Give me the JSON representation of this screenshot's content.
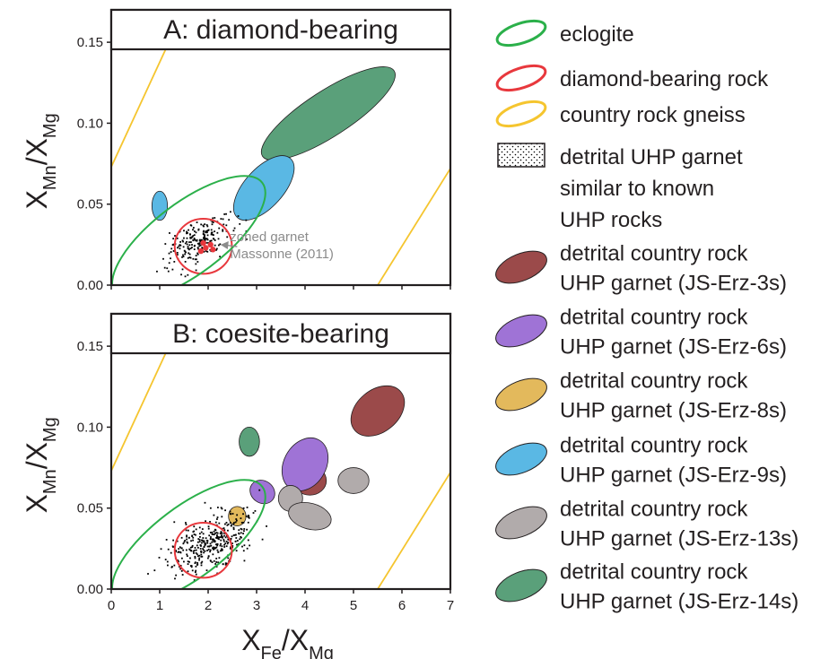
{
  "chart_data": [
    {
      "type": "scatter",
      "title": "A: diamond-bearing",
      "ylabel": {
        "main": "X",
        "sub1": "Mn",
        "mid": "/X",
        "sub2": "Mg"
      },
      "xlim": [
        0,
        7
      ],
      "ylim": [
        0,
        0.17
      ],
      "yticks": [
        "0.00",
        "0.05",
        "0.10",
        "0.15"
      ],
      "annotation": {
        "line1": "zoned garnet",
        "line2": "Massonne (2011)"
      },
      "lines": [
        {
          "name": "country rock gneiss",
          "points": [
            [
              0,
              0.073
            ],
            [
              1.5,
              0.17
            ]
          ]
        },
        {
          "name": "country rock gneiss",
          "points": [
            [
              5.5,
              0.0
            ],
            [
              7.0,
              0.072
            ]
          ]
        }
      ],
      "ellipses": [
        {
          "series": "JS-Erz-14s",
          "cx": 4.48,
          "cy": 0.106,
          "rx": 1.62,
          "ry": 0.014,
          "angle_deg": 33.0
        },
        {
          "series": "JS-Erz-9s",
          "cx": 3.15,
          "cy": 0.06,
          "rx": 0.82,
          "ry": 0.012,
          "angle_deg": 48.0
        },
        {
          "series": "JS-Erz-9s",
          "cx": 1.0,
          "cy": 0.049,
          "rx": 0.16,
          "ry": 0.009,
          "angle_deg": 0
        },
        {
          "series": "diamond-bearing rock",
          "cx": 1.9,
          "cy": 0.024,
          "rx": 0.59,
          "ry": 0.017,
          "angle_deg": 0
        },
        {
          "series": "eclogite",
          "cx": 1.6,
          "cy": 0.029,
          "rx": 1.9,
          "ry": 0.022,
          "angle_deg": 37.0
        }
      ],
      "scatter_clusters": [
        {
          "series": "detrital UHP garnet similar to known UHP rocks",
          "cx": 1.75,
          "cy": 0.027,
          "sx": 0.33,
          "sy": 0.0075,
          "rho": 0.5,
          "n": 220,
          "seed": 7
        }
      ],
      "zoned_points": [
        [
          1.85,
          0.021
        ],
        [
          1.95,
          0.023
        ],
        [
          2.05,
          0.025
        ],
        [
          1.9,
          0.026
        ],
        [
          2.1,
          0.022
        ]
      ]
    },
    {
      "type": "scatter",
      "title": "B: coesite-bearing",
      "xlabel": {
        "main": "X",
        "sub1": "Fe",
        "mid": "/X",
        "sub2": "Mg"
      },
      "ylabel": {
        "main": "X",
        "sub1": "Mn",
        "mid": "/X",
        "sub2": "Mg"
      },
      "xlim": [
        0,
        7
      ],
      "ylim": [
        0,
        0.17
      ],
      "xticks": [
        "0",
        "1",
        "2",
        "3",
        "4",
        "5",
        "6",
        "7"
      ],
      "yticks": [
        "0.00",
        "0.05",
        "0.10",
        "0.15"
      ],
      "lines": [
        {
          "name": "country rock gneiss",
          "points": [
            [
              0,
              0.073
            ],
            [
              1.5,
              0.17
            ]
          ]
        },
        {
          "name": "country rock gneiss",
          "points": [
            [
              5.5,
              0.0
            ],
            [
              7.0,
              0.072
            ]
          ]
        }
      ],
      "ellipses": [
        {
          "series": "eclogite",
          "cx": 1.6,
          "cy": 0.029,
          "rx": 1.9,
          "ry": 0.022,
          "angle_deg": 37.0
        },
        {
          "series": "diamond-bearing rock",
          "cx": 1.9,
          "cy": 0.024,
          "rx": 0.59,
          "ry": 0.017,
          "angle_deg": 0
        },
        {
          "series": "JS-Erz-3s",
          "cx": 5.5,
          "cy": 0.11,
          "rx": 0.62,
          "ry": 0.013,
          "angle_deg": 40.0
        },
        {
          "series": "JS-Erz-3s",
          "cx": 4.1,
          "cy": 0.067,
          "rx": 0.34,
          "ry": 0.009,
          "angle_deg": 0
        },
        {
          "series": "JS-Erz-6s",
          "cx": 4.0,
          "cy": 0.077,
          "rx": 0.58,
          "ry": 0.013,
          "angle_deg": 60.0
        },
        {
          "series": "JS-Erz-6s",
          "cx": 3.12,
          "cy": 0.06,
          "rx": 0.23,
          "ry": 0.008,
          "angle_deg": 55.0
        },
        {
          "series": "JS-Erz-8s",
          "cx": 2.6,
          "cy": 0.045,
          "rx": 0.18,
          "ry": 0.006,
          "angle_deg": 0
        },
        {
          "series": "JS-Erz-13s",
          "cx": 3.7,
          "cy": 0.056,
          "rx": 0.25,
          "ry": 0.008,
          "angle_deg": 0
        },
        {
          "series": "JS-Erz-13s",
          "cx": 5.0,
          "cy": 0.067,
          "rx": 0.32,
          "ry": 0.008,
          "angle_deg": 0
        },
        {
          "series": "JS-Erz-13s",
          "cx": 4.1,
          "cy": 0.045,
          "rx": 0.45,
          "ry": 0.008,
          "angle_deg": -15.0
        },
        {
          "series": "JS-Erz-14s",
          "cx": 2.85,
          "cy": 0.091,
          "rx": 0.21,
          "ry": 0.009,
          "angle_deg": 0
        }
      ],
      "scatter_clusters": [
        {
          "series": "detrital UHP garnet similar to known UHP rocks",
          "cx": 2.05,
          "cy": 0.029,
          "sx": 0.45,
          "sy": 0.0095,
          "rho": 0.55,
          "n": 380,
          "seed": 13
        }
      ]
    }
  ],
  "legend": {
    "items": [
      {
        "key": "eclogite",
        "type": "ellipse-outline",
        "color": "#2bb04a",
        "lines": [
          "eclogite"
        ]
      },
      {
        "key": "diamond-bearing rock",
        "type": "ellipse-outline",
        "color": "#e8383d",
        "lines": [
          "diamond-bearing rock"
        ]
      },
      {
        "key": "country rock gneiss",
        "type": "ellipse-outline",
        "color": "#f5c52f",
        "lines": [
          "country rock gneiss"
        ]
      },
      {
        "key": "detrital UHP garnet similar to known UHP rocks",
        "type": "dots",
        "color": "#000000",
        "lines": [
          "detrital UHP garnet",
          "similar to known",
          "UHP rocks"
        ]
      },
      {
        "key": "JS-Erz-3s",
        "type": "ellipse-fill",
        "color": "#9b4a4a",
        "lines": [
          "detrital country rock",
          "UHP garnet (JS-Erz-3s)"
        ]
      },
      {
        "key": "JS-Erz-6s",
        "type": "ellipse-fill",
        "color": "#9f73d6",
        "lines": [
          "detrital country rock",
          "UHP garnet (JS-Erz-6s)"
        ]
      },
      {
        "key": "JS-Erz-8s",
        "type": "ellipse-fill",
        "color": "#e3b95c",
        "lines": [
          "detrital country rock",
          "UHP garnet (JS-Erz-8s)"
        ]
      },
      {
        "key": "JS-Erz-9s",
        "type": "ellipse-fill",
        "color": "#5ab8e4",
        "lines": [
          "detrital country rock",
          "UHP garnet (JS-Erz-9s)"
        ]
      },
      {
        "key": "JS-Erz-13s",
        "type": "ellipse-fill",
        "color": "#b1abab",
        "lines": [
          "detrital country rock",
          "UHP garnet (JS-Erz-13s)"
        ]
      },
      {
        "key": "JS-Erz-14s",
        "type": "ellipse-fill",
        "color": "#5aa07a",
        "lines": [
          "detrital country rock",
          "UHP garnet (JS-Erz-14s)"
        ]
      }
    ]
  }
}
